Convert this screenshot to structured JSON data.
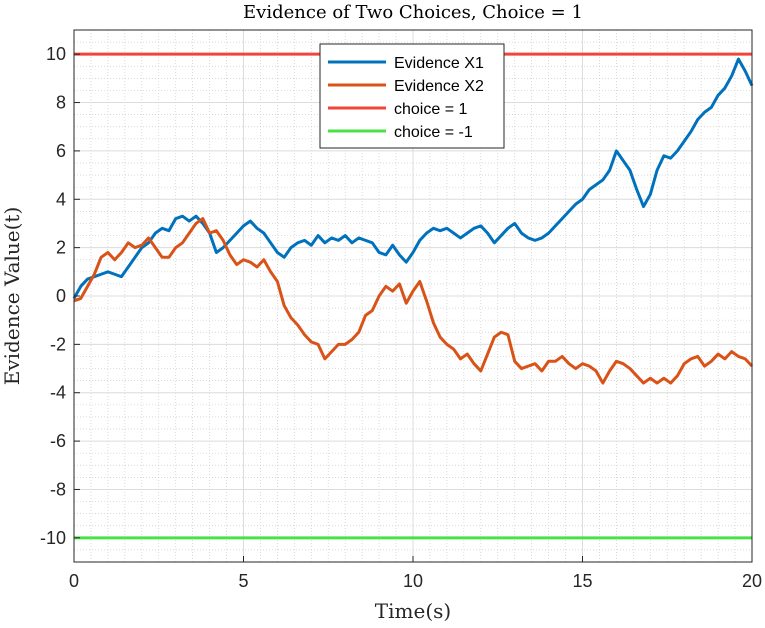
{
  "chart_data": {
    "type": "line",
    "title": "Evidence of Two Choices, Choice = 1",
    "xlabel": "Time(s)",
    "ylabel": "Evidence Value(t)",
    "xlim": [
      0,
      20
    ],
    "ylim": [
      -11,
      11
    ],
    "xticks": [
      0,
      5,
      10,
      15,
      20
    ],
    "yticks": [
      -10,
      -8,
      -6,
      -4,
      -2,
      0,
      2,
      4,
      6,
      8,
      10
    ],
    "xtick_labels": [
      "0",
      "5",
      "10",
      "15",
      "20"
    ],
    "ytick_labels": [
      "-10",
      "-8",
      "-6",
      "-4",
      "-2",
      "0",
      "2",
      "4",
      "6",
      "8",
      "10"
    ],
    "grid": true,
    "minor_grid": true,
    "legend_position": "top-center",
    "series": [
      {
        "name": "Evidence X1",
        "color": "#0072BD",
        "x": [
          0,
          0.2,
          0.4,
          0.6,
          0.8,
          1.0,
          1.2,
          1.4,
          1.6,
          1.8,
          2.0,
          2.2,
          2.4,
          2.6,
          2.8,
          3.0,
          3.2,
          3.4,
          3.6,
          3.8,
          4.0,
          4.2,
          4.4,
          4.6,
          4.8,
          5.0,
          5.2,
          5.4,
          5.6,
          5.8,
          6.0,
          6.2,
          6.4,
          6.6,
          6.8,
          7.0,
          7.2,
          7.4,
          7.6,
          7.8,
          8.0,
          8.2,
          8.4,
          8.6,
          8.8,
          9.0,
          9.2,
          9.4,
          9.6,
          9.8,
          10.0,
          10.2,
          10.4,
          10.6,
          10.8,
          11.0,
          11.2,
          11.4,
          11.6,
          11.8,
          12.0,
          12.2,
          12.4,
          12.6,
          12.8,
          13.0,
          13.2,
          13.4,
          13.6,
          13.8,
          14.0,
          14.2,
          14.4,
          14.6,
          14.8,
          15.0,
          15.2,
          15.4,
          15.6,
          15.8,
          16.0,
          16.2,
          16.4,
          16.6,
          16.8,
          17.0,
          17.2,
          17.4,
          17.6,
          17.8,
          18.0,
          18.2,
          18.4,
          18.6,
          18.8,
          19.0,
          19.2,
          19.4,
          19.6,
          19.8,
          20.0
        ],
        "values": [
          -0.1,
          0.4,
          0.7,
          0.8,
          0.9,
          1.0,
          0.9,
          0.8,
          1.2,
          1.6,
          2.0,
          2.2,
          2.6,
          2.8,
          2.7,
          3.2,
          3.3,
          3.1,
          3.3,
          3.0,
          2.6,
          1.8,
          2.0,
          2.3,
          2.6,
          2.9,
          3.1,
          2.8,
          2.6,
          2.2,
          1.8,
          1.6,
          2.0,
          2.2,
          2.3,
          2.1,
          2.5,
          2.2,
          2.4,
          2.3,
          2.5,
          2.2,
          2.4,
          2.3,
          2.2,
          1.8,
          1.7,
          2.1,
          1.7,
          1.4,
          1.8,
          2.3,
          2.6,
          2.8,
          2.7,
          2.8,
          2.6,
          2.4,
          2.6,
          2.8,
          2.9,
          2.6,
          2.2,
          2.5,
          2.8,
          3.0,
          2.6,
          2.4,
          2.3,
          2.4,
          2.6,
          2.9,
          3.2,
          3.5,
          3.8,
          4.0,
          4.4,
          4.6,
          4.8,
          5.2,
          6.0,
          5.6,
          5.2,
          4.4,
          3.7,
          4.2,
          5.2,
          5.8,
          5.7,
          6.0,
          6.4,
          6.8,
          7.3,
          7.6,
          7.8,
          8.3,
          8.6,
          9.1,
          9.8,
          9.3,
          8.7
        ]
      },
      {
        "name": "Evidence X2",
        "color": "#D95319",
        "x": [
          0,
          0.2,
          0.4,
          0.6,
          0.8,
          1.0,
          1.2,
          1.4,
          1.6,
          1.8,
          2.0,
          2.2,
          2.4,
          2.6,
          2.8,
          3.0,
          3.2,
          3.4,
          3.6,
          3.8,
          4.0,
          4.2,
          4.4,
          4.6,
          4.8,
          5.0,
          5.2,
          5.4,
          5.6,
          5.8,
          6.0,
          6.2,
          6.4,
          6.6,
          6.8,
          7.0,
          7.2,
          7.4,
          7.6,
          7.8,
          8.0,
          8.2,
          8.4,
          8.6,
          8.8,
          9.0,
          9.2,
          9.4,
          9.6,
          9.8,
          10.0,
          10.2,
          10.4,
          10.6,
          10.8,
          11.0,
          11.2,
          11.4,
          11.6,
          11.8,
          12.0,
          12.2,
          12.4,
          12.6,
          12.8,
          13.0,
          13.2,
          13.4,
          13.6,
          13.8,
          14.0,
          14.2,
          14.4,
          14.6,
          14.8,
          15.0,
          15.2,
          15.4,
          15.6,
          15.8,
          16.0,
          16.2,
          16.4,
          16.6,
          16.8,
          17.0,
          17.2,
          17.4,
          17.6,
          17.8,
          18.0,
          18.2,
          18.4,
          18.6,
          18.8,
          19.0,
          19.2,
          19.4,
          19.6,
          19.8,
          20.0
        ],
        "values": [
          -0.2,
          -0.1,
          0.4,
          0.9,
          1.6,
          1.8,
          1.5,
          1.8,
          2.2,
          2.0,
          2.1,
          2.4,
          2.0,
          1.6,
          1.6,
          2.0,
          2.2,
          2.6,
          3.0,
          3.2,
          2.6,
          2.7,
          2.3,
          1.7,
          1.3,
          1.5,
          1.4,
          1.2,
          1.5,
          1.0,
          0.6,
          -0.4,
          -0.9,
          -1.2,
          -1.6,
          -1.9,
          -2.0,
          -2.6,
          -2.3,
          -2.0,
          -2.0,
          -1.8,
          -1.5,
          -0.8,
          -0.6,
          0.0,
          0.4,
          0.2,
          0.5,
          -0.3,
          0.2,
          0.6,
          -0.2,
          -1.1,
          -1.7,
          -2.0,
          -2.2,
          -2.6,
          -2.4,
          -2.8,
          -3.1,
          -2.4,
          -1.7,
          -1.5,
          -1.6,
          -2.7,
          -3.0,
          -2.9,
          -2.8,
          -3.1,
          -2.7,
          -2.7,
          -2.5,
          -2.8,
          -3.0,
          -2.8,
          -2.9,
          -3.1,
          -3.6,
          -3.1,
          -2.7,
          -2.8,
          -3.0,
          -3.3,
          -3.6,
          -3.4,
          -3.6,
          -3.4,
          -3.6,
          -3.3,
          -2.8,
          -2.6,
          -2.5,
          -2.9,
          -2.7,
          -2.4,
          -2.6,
          -2.3,
          -2.5,
          -2.6,
          -2.9
        ]
      },
      {
        "name": "choice = 1",
        "color": "#F0453A",
        "x": [
          0,
          20
        ],
        "values": [
          10,
          10
        ]
      },
      {
        "name": "choice = -1",
        "color": "#4BE046",
        "x": [
          0,
          20
        ],
        "values": [
          -10,
          -10
        ]
      }
    ]
  }
}
